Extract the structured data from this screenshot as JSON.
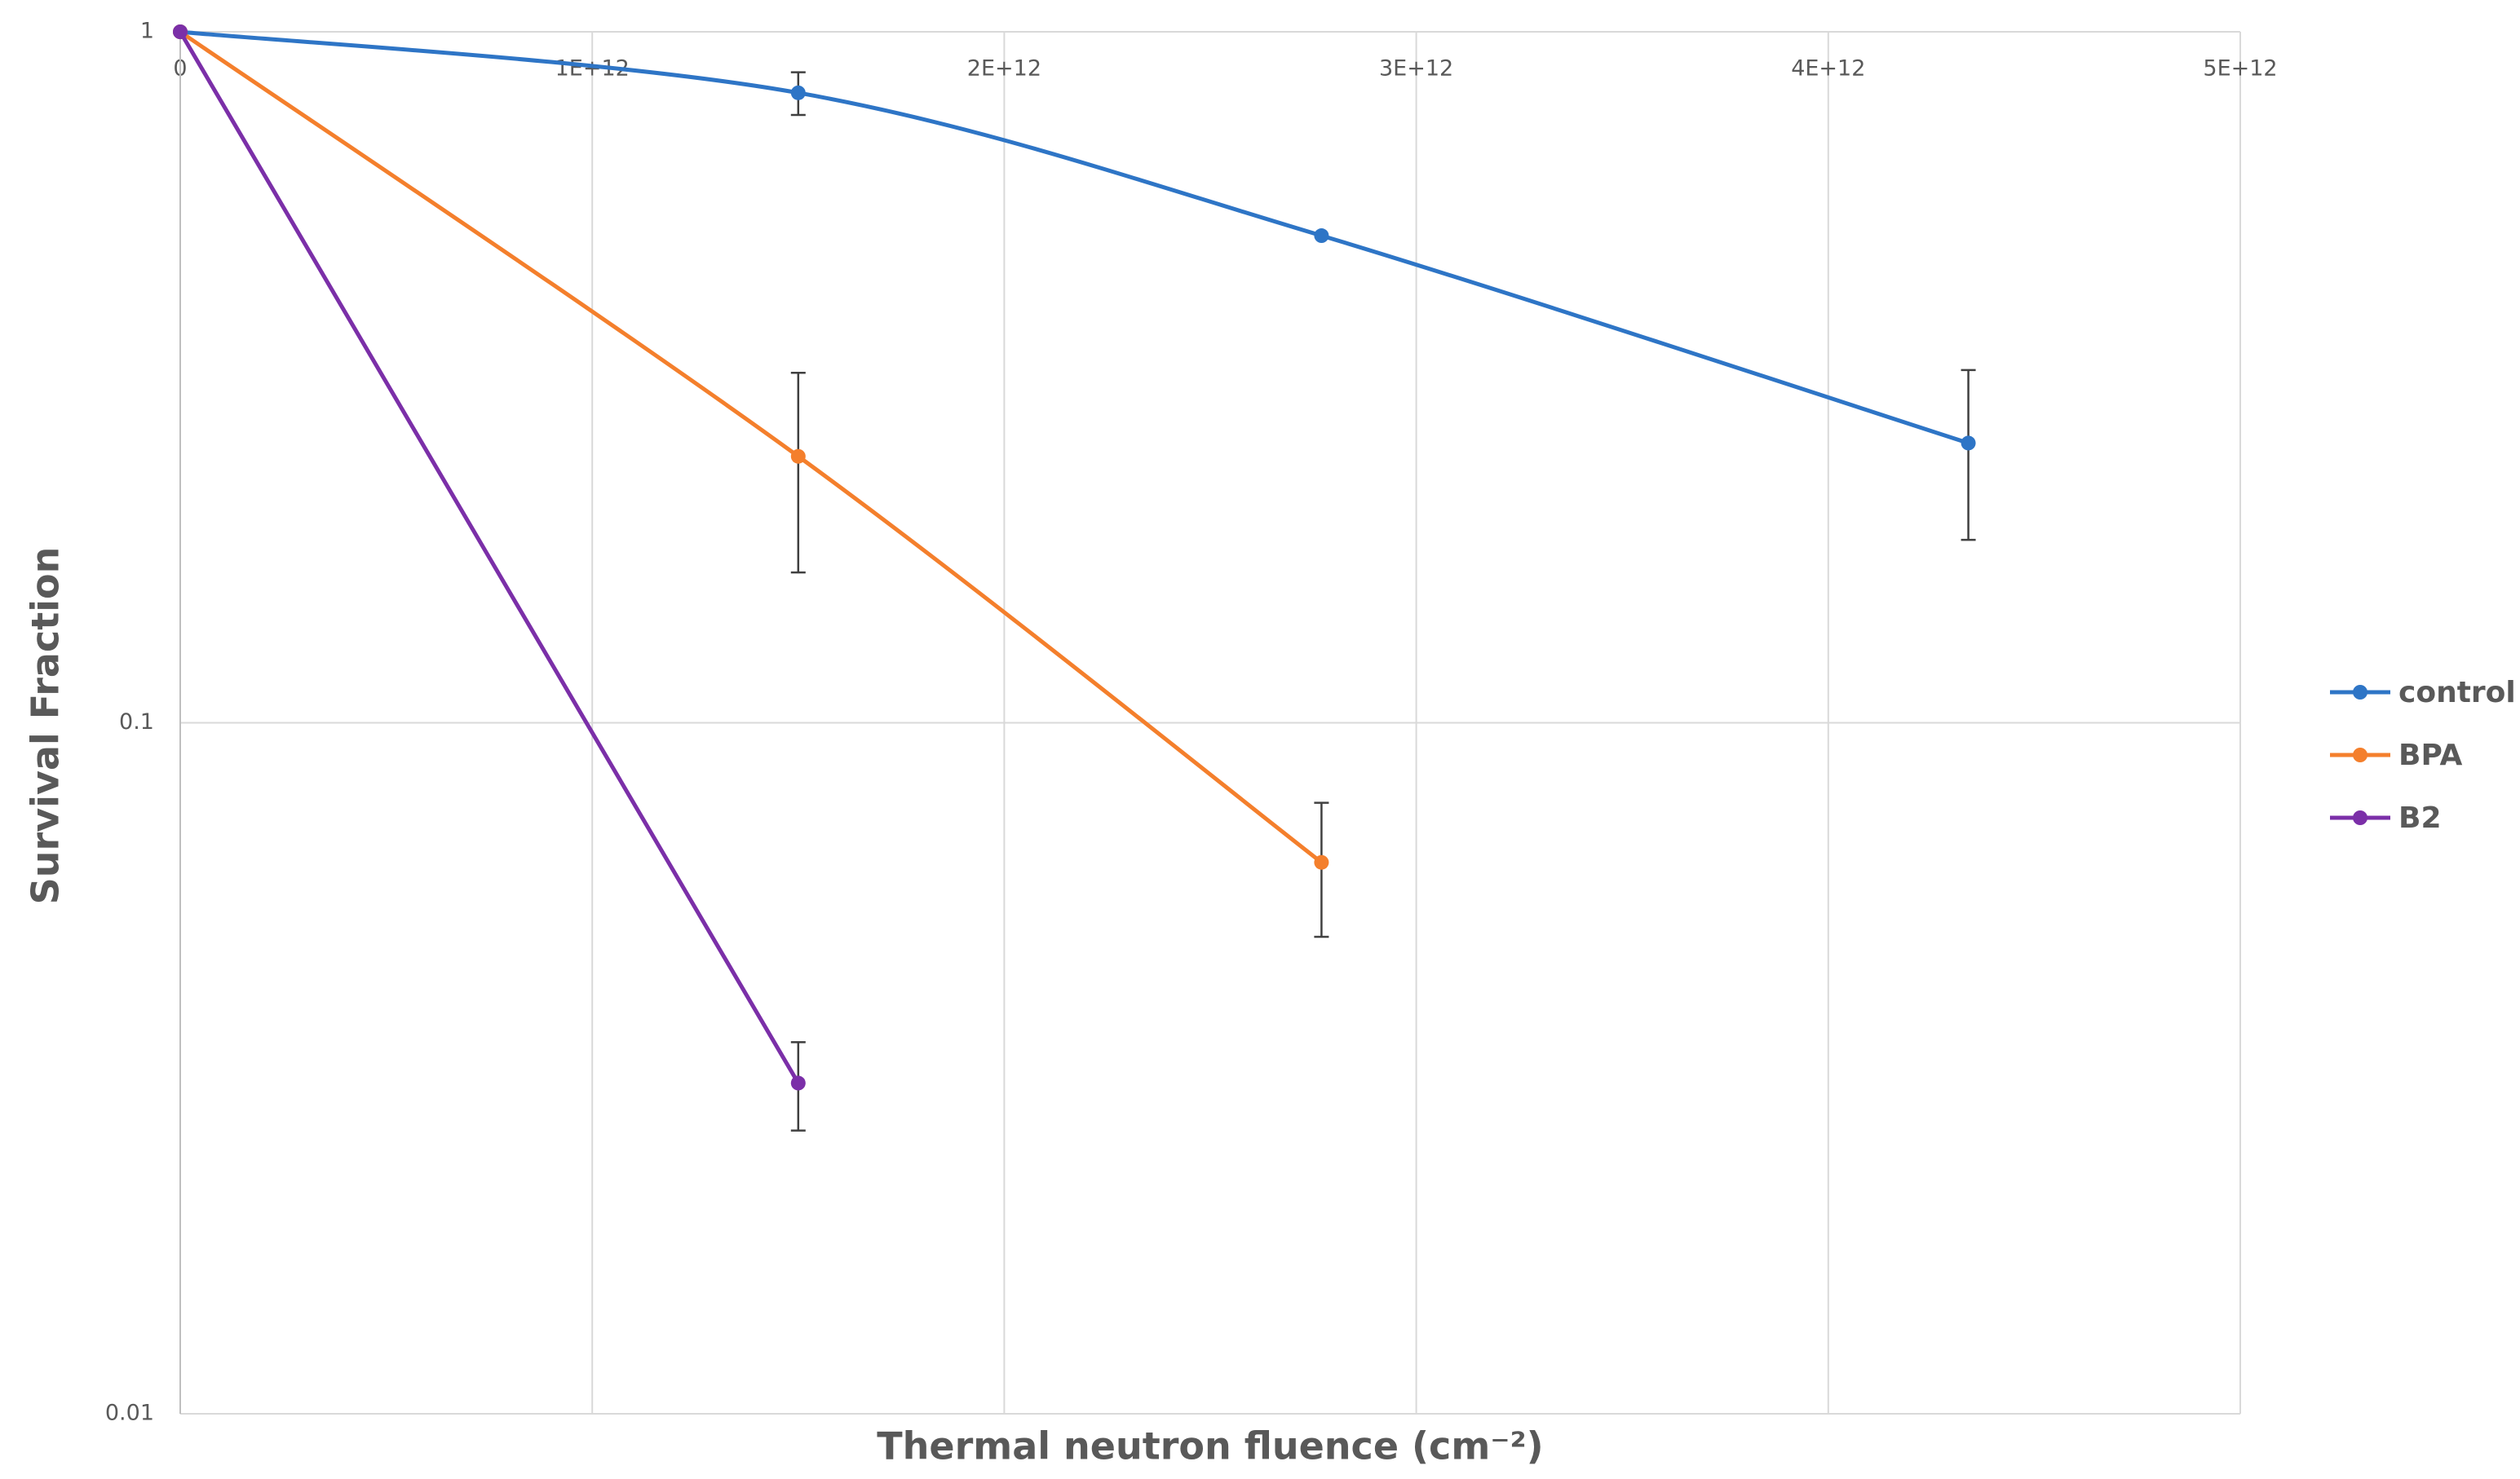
{
  "chart_data": {
    "type": "line",
    "x_label": "Thermal neutron fluence (cm⁻²)",
    "y_label": "Survival Fraction",
    "xlim": [
      0,
      5000000000000
    ],
    "xticks": [
      0,
      {
        "value": 1000000000000,
        "label": "1E+12"
      },
      {
        "value": 2000000000000,
        "label": "2E+12"
      },
      {
        "value": 3000000000000,
        "label": "3E+12"
      },
      {
        "value": 4000000000000,
        "label": "4E+12"
      },
      {
        "value": 5000000000000,
        "label": "5E+12"
      }
    ],
    "ylim": [
      0.01,
      1
    ],
    "yticks": [
      0.01,
      0.1,
      1
    ],
    "y_scale": "log",
    "grid": true,
    "legend": "right",
    "series": [
      {
        "name": "control",
        "color": "#2e75c6",
        "x": [
          0,
          1500000000000,
          2770000000000,
          4340000000000
        ],
        "values": [
          1,
          0.816,
          0.507,
          0.254
        ],
        "errors": [
          null,
          0.058,
          null,
          0.07
        ]
      },
      {
        "name": "BPA",
        "color": "#f47f2c",
        "x": [
          0,
          1500000000000,
          2770000000000
        ],
        "values": [
          1,
          0.243,
          0.0628
        ],
        "errors": [
          null,
          0.078,
          0.0138
        ]
      },
      {
        "name": "B2",
        "color": "#7b2fa8",
        "x": [
          0,
          1500000000000
        ],
        "values": [
          1,
          0.0301
        ],
        "errors": [
          null,
          0.0044
        ]
      }
    ]
  }
}
